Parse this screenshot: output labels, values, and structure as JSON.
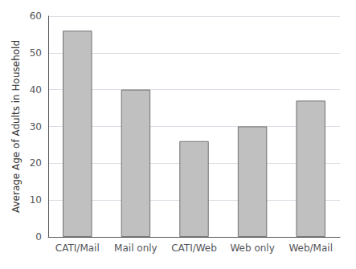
{
  "chart_data": {
    "type": "bar",
    "categories": [
      "CATI/Mail",
      "Mail only",
      "CATI/Web",
      "Web only",
      "Web/Mail"
    ],
    "values": [
      56,
      40,
      26,
      30,
      37
    ],
    "color": "#c0c0c0",
    "ylabel": "Average Age of Adults in Household",
    "ylim": [
      0,
      60
    ],
    "yticks": [
      0,
      10,
      20,
      30,
      40,
      50,
      60
    ],
    "grid": true
  }
}
